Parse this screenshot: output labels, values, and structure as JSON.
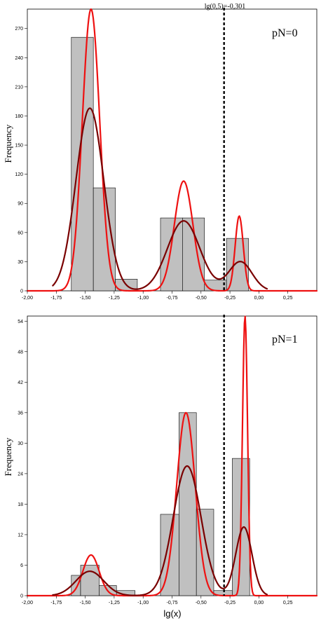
{
  "colors": {
    "bar_fill": "#c0c0c0",
    "curve_red": "#ee1111",
    "curve_dark": "#7a0000",
    "reference_line": "#000000"
  },
  "chart_data": [
    {
      "type": "bar",
      "panel_label": "pN=0",
      "ylabel": "Frequency",
      "xlabel": "",
      "xlim": [
        -2.0,
        0.5
      ],
      "ylim": [
        0,
        290
      ],
      "xticks": [
        "-2,00",
        "-1,75",
        "-1,50",
        "-1,25",
        "-1,00",
        "-0,75",
        "-0,50",
        "-0,25",
        "0,00",
        "0,25"
      ],
      "yticks": [
        "0",
        "30",
        "60",
        "90",
        "120",
        "150",
        "180",
        "210",
        "240",
        "270"
      ],
      "bin_width": 0.19,
      "bins": [
        {
          "x0": -1.62,
          "x1": -1.43,
          "count": 261
        },
        {
          "x0": -1.43,
          "x1": -1.24,
          "count": 106
        },
        {
          "x0": -1.24,
          "x1": -1.05,
          "count": 12
        },
        {
          "x0": -0.85,
          "x1": -0.66,
          "count": 75
        },
        {
          "x0": -0.66,
          "x1": -0.47,
          "count": 75
        },
        {
          "x0": -0.47,
          "x1": -0.28,
          "count": 11
        },
        {
          "x0": -0.28,
          "x1": -0.09,
          "count": 54
        }
      ],
      "reference_line": {
        "x": -0.301,
        "label": "lg(0,5)=-0,301"
      },
      "series": [
        {
          "color": "red",
          "x_range": [
            -2.0,
            0.5
          ],
          "components": [
            {
              "mu": -1.45,
              "sigma": 0.075,
              "amp": 290
            },
            {
              "mu": -0.65,
              "sigma": 0.08,
              "amp": 113
            },
            {
              "mu": -0.17,
              "sigma": 0.035,
              "amp": 77
            }
          ]
        },
        {
          "color": "dark",
          "x_range": [
            -1.78,
            0.07
          ],
          "components": [
            {
              "mu": -1.46,
              "sigma": 0.12,
              "amp": 188
            },
            {
              "mu": -0.65,
              "sigma": 0.14,
              "amp": 72
            },
            {
              "mu": -0.16,
              "sigma": 0.1,
              "amp": 30
            }
          ]
        }
      ]
    },
    {
      "type": "bar",
      "panel_label": "pN=1",
      "ylabel": "Frequency",
      "xlabel": "lg(x)",
      "xlim": [
        -2.0,
        0.5
      ],
      "ylim": [
        0,
        55
      ],
      "xticks": [
        "-2,00",
        "-1,75",
        "-1,50",
        "-1,25",
        "-1,00",
        "-0,75",
        "-0,50",
        "-0,25",
        "0,00",
        "0,25"
      ],
      "yticks": [
        "0",
        "6",
        "12",
        "18",
        "24",
        "30",
        "36",
        "42",
        "48",
        "54"
      ],
      "bin_width": 0.08,
      "bins": [
        {
          "x0": -1.62,
          "x1": -1.54,
          "count": 4
        },
        {
          "x0": -1.54,
          "x1": -1.38,
          "count": 6
        },
        {
          "x0": -1.38,
          "x1": -1.23,
          "count": 2
        },
        {
          "x0": -1.23,
          "x1": -1.07,
          "count": 1
        },
        {
          "x0": -0.85,
          "x1": -0.69,
          "count": 16
        },
        {
          "x0": -0.69,
          "x1": -0.54,
          "count": 36
        },
        {
          "x0": -0.54,
          "x1": -0.39,
          "count": 17
        },
        {
          "x0": -0.39,
          "x1": -0.23,
          "count": 1
        },
        {
          "x0": -0.23,
          "x1": -0.08,
          "count": 27
        }
      ],
      "reference_line": {
        "x": -0.301,
        "label": ""
      },
      "series": [
        {
          "color": "red",
          "x_range": [
            -2.0,
            0.5
          ],
          "components": [
            {
              "mu": -1.45,
              "sigma": 0.07,
              "amp": 8
            },
            {
              "mu": -0.63,
              "sigma": 0.08,
              "amp": 36
            },
            {
              "mu": -0.12,
              "sigma": 0.022,
              "amp": 55
            }
          ]
        },
        {
          "color": "dark",
          "x_range": [
            -1.78,
            0.07
          ],
          "components": [
            {
              "mu": -1.46,
              "sigma": 0.12,
              "amp": 4.8
            },
            {
              "mu": -0.62,
              "sigma": 0.12,
              "amp": 25.5
            },
            {
              "mu": -0.13,
              "sigma": 0.07,
              "amp": 13.5
            }
          ]
        }
      ]
    }
  ]
}
